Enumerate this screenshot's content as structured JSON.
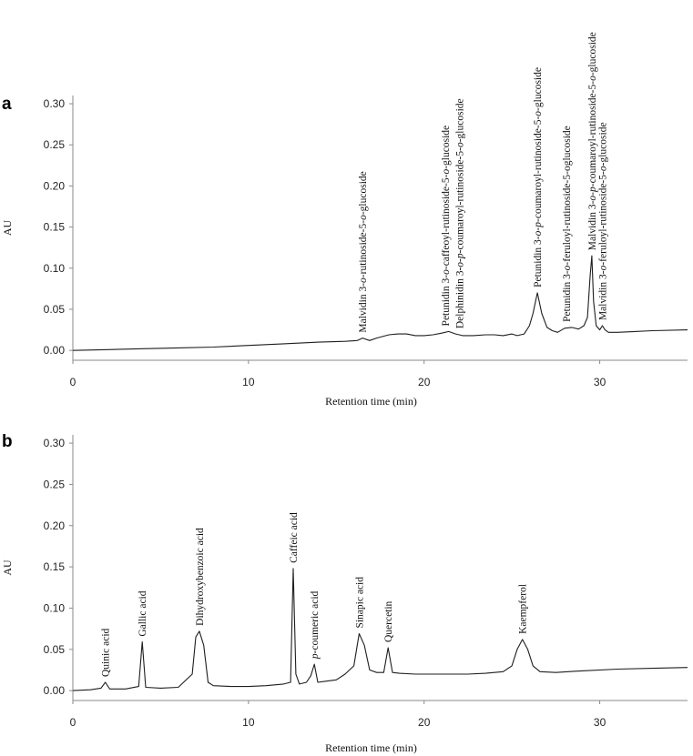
{
  "chart_data": [
    {
      "panel": "a",
      "type": "line",
      "xlabel": "Retention time (min)",
      "ylabel": "AU",
      "xlim": [
        0,
        35
      ],
      "ylim": [
        -0.012,
        0.31
      ],
      "xticks": [
        0,
        10,
        20,
        30
      ],
      "yticks": [
        0.0,
        0.05,
        0.1,
        0.15,
        0.2,
        0.25,
        0.3
      ],
      "ytick_labels": [
        "0.00",
        "0.05",
        "0.10",
        "0.15",
        "0.20",
        "0.25",
        "0.30"
      ],
      "grid": false,
      "series": [
        {
          "x": [
            0,
            2,
            4,
            6,
            8,
            10,
            12,
            14,
            15.5,
            16.2,
            16.5,
            16.9,
            17.3,
            18,
            18.5,
            19,
            19.5,
            20,
            20.5,
            21,
            21.4,
            21.8,
            22.2,
            22.8,
            23.5,
            24,
            24.5,
            25,
            25.3,
            25.7,
            26,
            26.2,
            26.45,
            26.7,
            27,
            27.3,
            27.6,
            28,
            28.4,
            28.8,
            29.1,
            29.3,
            29.45,
            29.55,
            29.65,
            29.8,
            30.0,
            30.15,
            30.3,
            30.5,
            31,
            32,
            33,
            35
          ],
          "y": [
            0.0,
            0.001,
            0.002,
            0.003,
            0.004,
            0.006,
            0.008,
            0.01,
            0.011,
            0.012,
            0.015,
            0.012,
            0.015,
            0.019,
            0.02,
            0.02,
            0.018,
            0.018,
            0.019,
            0.021,
            0.023,
            0.02,
            0.018,
            0.018,
            0.019,
            0.019,
            0.018,
            0.02,
            0.018,
            0.02,
            0.03,
            0.045,
            0.07,
            0.045,
            0.028,
            0.024,
            0.022,
            0.027,
            0.028,
            0.026,
            0.03,
            0.04,
            0.09,
            0.115,
            0.06,
            0.03,
            0.025,
            0.03,
            0.025,
            0.022,
            0.022,
            0.023,
            0.024,
            0.025
          ]
        }
      ],
      "annotations": [
        {
          "label": "Malvidin 3-o-rutinoside-5-o-glucoside",
          "x": 16.5,
          "y": 0.015
        },
        {
          "label": "Petunidin 3-o-caffeoyl-rutinoside-5-o-glucoside",
          "x": 21.2,
          "y": 0.023
        },
        {
          "label": "Delphinidin 3-o-p-coumaroyl-rutinoside-5-o-glucoside",
          "x": 22.0,
          "y": 0.02
        },
        {
          "label": "Petunidin 3-o-p-coumaroyl-rutinoside-5-o-glucoside",
          "x": 26.45,
          "y": 0.07
        },
        {
          "label": "Petunidin 3-o-feruloyl-rutinoside-5-oglucoside",
          "x": 28.1,
          "y": 0.028
        },
        {
          "label": "Malvidin 3-o-p-coumaroyl-rutinoside-5-o-glucoside",
          "x": 29.55,
          "y": 0.115
        },
        {
          "label": "Malvidin 3-o-feruloyl-rutinoside-5-o-glucoside",
          "x": 30.15,
          "y": 0.03
        }
      ]
    },
    {
      "panel": "b",
      "type": "line",
      "xlabel": "Retention time (min)",
      "ylabel": "AU",
      "xlim": [
        0,
        35
      ],
      "ylim": [
        -0.012,
        0.31
      ],
      "xticks": [
        0,
        10,
        20,
        30
      ],
      "yticks": [
        0.0,
        0.05,
        0.1,
        0.15,
        0.2,
        0.25,
        0.3
      ],
      "ytick_labels": [
        "0.00",
        "0.05",
        "0.10",
        "0.15",
        "0.20",
        "0.25",
        "0.30"
      ],
      "grid": false,
      "series": [
        {
          "x": [
            0,
            1.0,
            1.6,
            1.85,
            2.1,
            3.0,
            3.75,
            3.95,
            4.15,
            5.0,
            6.0,
            6.8,
            7.0,
            7.2,
            7.45,
            7.7,
            8.0,
            9.0,
            10.0,
            11.0,
            12.0,
            12.4,
            12.55,
            12.7,
            12.9,
            13.3,
            13.55,
            13.75,
            13.95,
            14.3,
            15.0,
            15.5,
            16.0,
            16.3,
            16.6,
            16.9,
            17.3,
            17.7,
            17.95,
            18.2,
            18.6,
            19.5,
            20.5,
            21.5,
            22.5,
            23.5,
            24.5,
            25.0,
            25.3,
            25.6,
            25.9,
            26.2,
            26.6,
            27.5,
            29,
            31,
            33,
            35
          ],
          "y": [
            0.0,
            0.001,
            0.003,
            0.01,
            0.002,
            0.002,
            0.005,
            0.059,
            0.004,
            0.003,
            0.004,
            0.02,
            0.065,
            0.072,
            0.055,
            0.01,
            0.006,
            0.005,
            0.005,
            0.006,
            0.008,
            0.01,
            0.148,
            0.02,
            0.008,
            0.01,
            0.018,
            0.032,
            0.01,
            0.011,
            0.013,
            0.02,
            0.03,
            0.069,
            0.055,
            0.025,
            0.022,
            0.022,
            0.052,
            0.022,
            0.021,
            0.02,
            0.02,
            0.02,
            0.02,
            0.021,
            0.023,
            0.03,
            0.05,
            0.062,
            0.05,
            0.03,
            0.023,
            0.022,
            0.024,
            0.026,
            0.027,
            0.028
          ]
        }
      ],
      "annotations": [
        {
          "label": "Quinic acid",
          "x": 1.85,
          "y": 0.01
        },
        {
          "label": "Gallic acid",
          "x": 3.95,
          "y": 0.059
        },
        {
          "label": "Dihydroxybenzoic acid",
          "x": 7.2,
          "y": 0.072
        },
        {
          "label": "Caffeic acid",
          "x": 12.55,
          "y": 0.148
        },
        {
          "label": "p-coumeric acid",
          "x": 13.75,
          "y": 0.032
        },
        {
          "label": "Sinapic acid",
          "x": 16.3,
          "y": 0.069
        },
        {
          "label": "Quercetin",
          "x": 17.95,
          "y": 0.052
        },
        {
          "label": "Kaempferol",
          "x": 25.6,
          "y": 0.062
        }
      ]
    }
  ]
}
